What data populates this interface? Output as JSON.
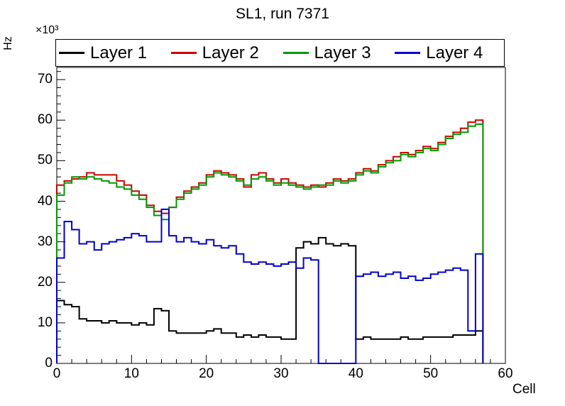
{
  "title": "SL1, run 7371",
  "axes": {
    "x": {
      "label": "Cell",
      "min": 0,
      "max": 60,
      "major_ticks": [
        0,
        10,
        20,
        30,
        40,
        50,
        60
      ],
      "minor_step": 2
    },
    "y": {
      "label": "Hz",
      "exponent_label": "×10³",
      "min": 0,
      "max": 73,
      "major_ticks": [
        0,
        10,
        20,
        30,
        40,
        50,
        60,
        70
      ],
      "minor_step": 2
    }
  },
  "legend": {
    "entries": [
      {
        "label": "Layer 1",
        "color": "#000000"
      },
      {
        "label": "Layer 2",
        "color": "#cc0000"
      },
      {
        "label": "Layer 3",
        "color": "#009900"
      },
      {
        "label": "Layer 4",
        "color": "#0000cc"
      }
    ]
  },
  "chart_data": {
    "type": "line",
    "variant": "step-histogram",
    "title": "SL1, run 7371",
    "xlabel": "Cell",
    "ylabel": "Hz",
    "xlim": [
      0,
      60
    ],
    "ylim": [
      0,
      73
    ],
    "values_unit": "×10³ Hz",
    "bin_start": 0,
    "bin_width": 1,
    "series": [
      {
        "name": "Layer 1",
        "color": "#000000",
        "values": [
          15.5,
          14.5,
          14,
          11,
          10.5,
          10.5,
          10,
          10.5,
          10,
          10,
          9.5,
          10,
          9.5,
          13.5,
          13,
          8,
          7.5,
          7.5,
          7.5,
          7.5,
          8,
          8.5,
          7.5,
          7.5,
          6.5,
          7,
          6.5,
          7,
          6.5,
          6.5,
          6,
          6,
          28.5,
          30,
          29.5,
          31,
          29.5,
          29,
          29.5,
          29,
          6,
          6.5,
          6,
          6,
          6,
          6,
          6.5,
          6,
          6,
          6.5,
          6.5,
          6.5,
          6.5,
          7,
          7,
          7,
          8
        ]
      },
      {
        "name": "Layer 2",
        "color": "#cc0000",
        "values": [
          44,
          45,
          45.5,
          46,
          47,
          46.5,
          46.5,
          46.5,
          45,
          44,
          42.5,
          41.5,
          39,
          37.5,
          37,
          38.5,
          41,
          42.5,
          43.5,
          44.5,
          46.5,
          47.5,
          47,
          46.5,
          45.5,
          43.5,
          46.5,
          47,
          45.5,
          44.5,
          45.5,
          44.5,
          44,
          43.5,
          44,
          43.5,
          44.5,
          45.5,
          45,
          45.5,
          47,
          48,
          47.5,
          49,
          50,
          51,
          52,
          51.5,
          52.5,
          53.5,
          53,
          54.5,
          56,
          57,
          58,
          59.5,
          60
        ]
      },
      {
        "name": "Layer 3",
        "color": "#009900",
        "values": [
          41.5,
          44.5,
          46,
          45.5,
          46,
          45.5,
          45,
          44.5,
          43.5,
          43,
          41.5,
          40.5,
          38.5,
          36.5,
          35.5,
          38.5,
          40.5,
          42,
          43,
          44,
          46,
          47,
          46.5,
          46,
          45,
          44,
          45.5,
          46,
          45,
          44,
          44.5,
          44,
          43.5,
          43,
          43.5,
          44,
          44,
          45,
          44.5,
          45,
          46.5,
          47.5,
          47,
          48.5,
          49.5,
          50,
          51.5,
          51,
          52,
          53,
          52.5,
          54,
          55.5,
          56.5,
          57,
          58.5,
          59
        ]
      },
      {
        "name": "Layer 4",
        "color": "#0000cc",
        "values": [
          26,
          35,
          33,
          29.5,
          30,
          28,
          29.5,
          30,
          30.5,
          31,
          32,
          31.5,
          30,
          30,
          38,
          31.5,
          30,
          31,
          30,
          29.5,
          30.5,
          29,
          28.5,
          29,
          27,
          25,
          24.5,
          25,
          24.5,
          24,
          24.5,
          25,
          23.5,
          26,
          25.5,
          0,
          0,
          0,
          0,
          0,
          21.5,
          22,
          22.5,
          21.5,
          22,
          22.5,
          21,
          21.5,
          20.5,
          21,
          22,
          22.5,
          23,
          23.5,
          23,
          8,
          27
        ]
      }
    ]
  }
}
